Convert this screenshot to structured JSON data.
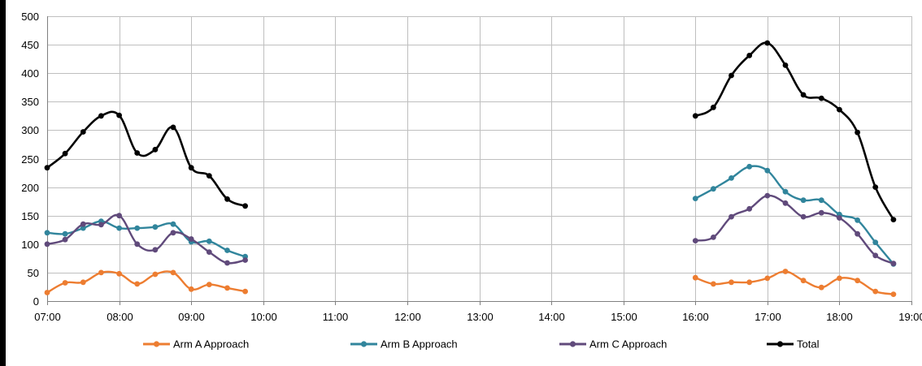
{
  "chart_data": {
    "type": "line",
    "title": "",
    "xlabel": "",
    "ylabel": "",
    "ylim": [
      0,
      500
    ],
    "xlim": [
      "07:00",
      "19:00"
    ],
    "y_ticks": [
      0,
      50,
      100,
      150,
      200,
      250,
      300,
      350,
      400,
      450,
      500
    ],
    "x_tick_labels": [
      "07:00",
      "08:00",
      "09:00",
      "10:00",
      "11:00",
      "12:00",
      "13:00",
      "14:00",
      "15:00",
      "16:00",
      "17:00",
      "18:00",
      "19:00"
    ],
    "grid": true,
    "legend_position": "bottom",
    "series": [
      {
        "name": "Arm A Approach",
        "color": "#ED7D31",
        "x": [
          "07:00",
          "07:15",
          "07:30",
          "07:45",
          "08:00",
          "08:15",
          "08:30",
          "08:45",
          "09:00",
          "09:15",
          "09:30",
          "09:45",
          "16:00",
          "16:15",
          "16:30",
          "16:45",
          "17:00",
          "17:15",
          "17:30",
          "17:45",
          "18:00",
          "18:15",
          "18:30",
          "18:45"
        ],
        "values": [
          15,
          32,
          33,
          50,
          48,
          30,
          47,
          50,
          21,
          29,
          23,
          17,
          41,
          30,
          33,
          33,
          40,
          52,
          36,
          24,
          40,
          36,
          17,
          12
        ]
      },
      {
        "name": "Arm B Approach",
        "color": "#31859C",
        "x": [
          "07:00",
          "07:15",
          "07:30",
          "07:45",
          "08:00",
          "08:15",
          "08:30",
          "08:45",
          "09:00",
          "09:15",
          "09:30",
          "09:45",
          "16:00",
          "16:15",
          "16:30",
          "16:45",
          "17:00",
          "17:15",
          "17:30",
          "17:45",
          "18:00",
          "18:15",
          "18:30",
          "18:45"
        ],
        "values": [
          120,
          118,
          128,
          140,
          128,
          128,
          130,
          135,
          104,
          105,
          89,
          78,
          180,
          197,
          216,
          236,
          229,
          192,
          177,
          177,
          152,
          142,
          103,
          65
        ]
      },
      {
        "name": "Arm C Approach",
        "color": "#604A7B",
        "x": [
          "07:00",
          "07:15",
          "07:30",
          "07:45",
          "08:00",
          "08:15",
          "08:30",
          "08:45",
          "09:00",
          "09:15",
          "09:30",
          "09:45",
          "16:00",
          "16:15",
          "16:30",
          "16:45",
          "17:00",
          "17:15",
          "17:30",
          "17:45",
          "18:00",
          "18:15",
          "18:30",
          "18:45"
        ],
        "values": [
          100,
          108,
          135,
          134,
          150,
          100,
          90,
          120,
          109,
          86,
          67,
          72,
          106,
          112,
          148,
          162,
          185,
          172,
          148,
          155,
          146,
          118,
          80,
          66
        ]
      },
      {
        "name": "Total",
        "color": "#000000",
        "x": [
          "07:00",
          "07:15",
          "07:30",
          "07:45",
          "08:00",
          "08:15",
          "08:30",
          "08:45",
          "09:00",
          "09:15",
          "09:30",
          "09:45",
          "16:00",
          "16:15",
          "16:30",
          "16:45",
          "17:00",
          "17:15",
          "17:30",
          "17:45",
          "18:00",
          "18:15",
          "18:30",
          "18:45"
        ],
        "values": [
          234,
          259,
          297,
          325,
          326,
          260,
          266,
          305,
          234,
          220,
          179,
          167,
          325,
          340,
          396,
          431,
          453,
          414,
          362,
          356,
          336,
          296,
          200,
          143
        ]
      }
    ]
  }
}
